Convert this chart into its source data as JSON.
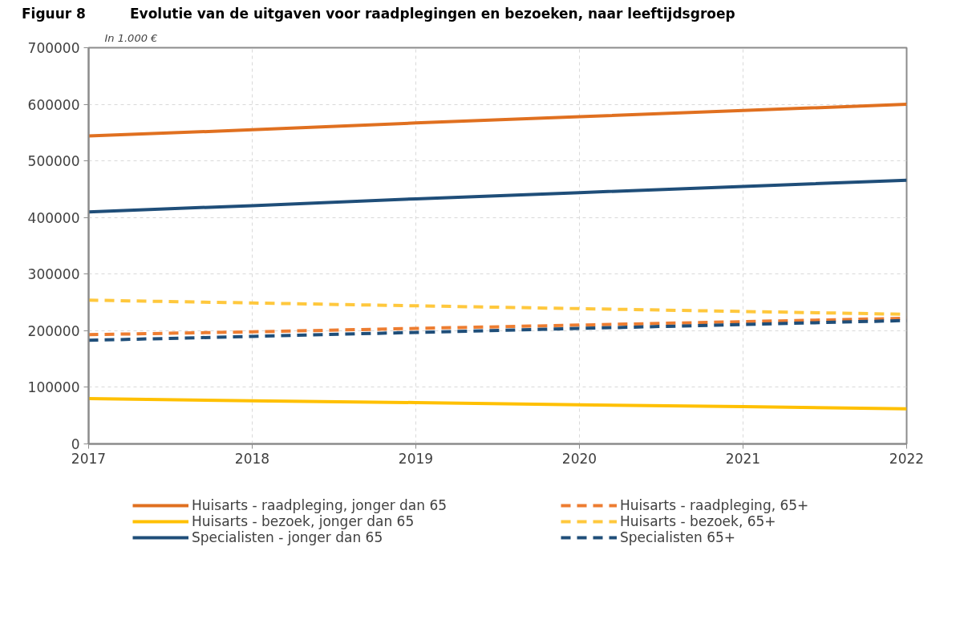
{
  "chart_data": {
    "type": "line",
    "title": "Evolutie van de uitgaven voor raadplegingen en bezoeken, naar leeftijdsgroep",
    "subtitle": "In 1.000 €",
    "annotations": [
      "Figuur 8"
    ],
    "x": [
      2017,
      2018,
      2019,
      2020,
      2021,
      2022
    ],
    "xlim": [
      2017,
      2022
    ],
    "xticks": [
      2017,
      2018,
      2019,
      2020,
      2021,
      2022
    ],
    "ylim": [
      0,
      700000
    ],
    "yticks": [
      0,
      100000,
      200000,
      300000,
      400000,
      500000,
      600000,
      700000
    ],
    "grid": true,
    "legend": "bottom",
    "series": [
      {
        "name": "Huisarts - raadpleging, jonger dan 65",
        "color": "#e07020",
        "line_style": "solid",
        "values": [
          544000,
          555000,
          567000,
          578000,
          589000,
          600000
        ]
      },
      {
        "name": "Huisarts - bezoek, jonger dan 65",
        "color": "#ffc000",
        "line_style": "solid",
        "values": [
          80000,
          76000,
          73000,
          69000,
          66000,
          62000
        ]
      },
      {
        "name": "Specialisten - jonger dan 65",
        "color": "#1f4e79",
        "line_style": "solid",
        "values": [
          410000,
          421000,
          433000,
          444000,
          455000,
          466000
        ]
      },
      {
        "name": "Huisarts - raadpleging, 65+",
        "color": "#ed7d31",
        "line_style": "dashed",
        "values": [
          193000,
          198000,
          204000,
          210000,
          216000,
          222000
        ]
      },
      {
        "name": "Huisarts - bezoek, 65+",
        "color": "#ffc83d",
        "line_style": "dashed",
        "values": [
          254000,
          249000,
          244000,
          239000,
          234000,
          229000
        ]
      },
      {
        "name": "Specialisten 65+",
        "color": "#1f4e79",
        "line_style": "dashed",
        "values": [
          183000,
          190000,
          197000,
          204000,
          211000,
          218000
        ]
      }
    ]
  }
}
